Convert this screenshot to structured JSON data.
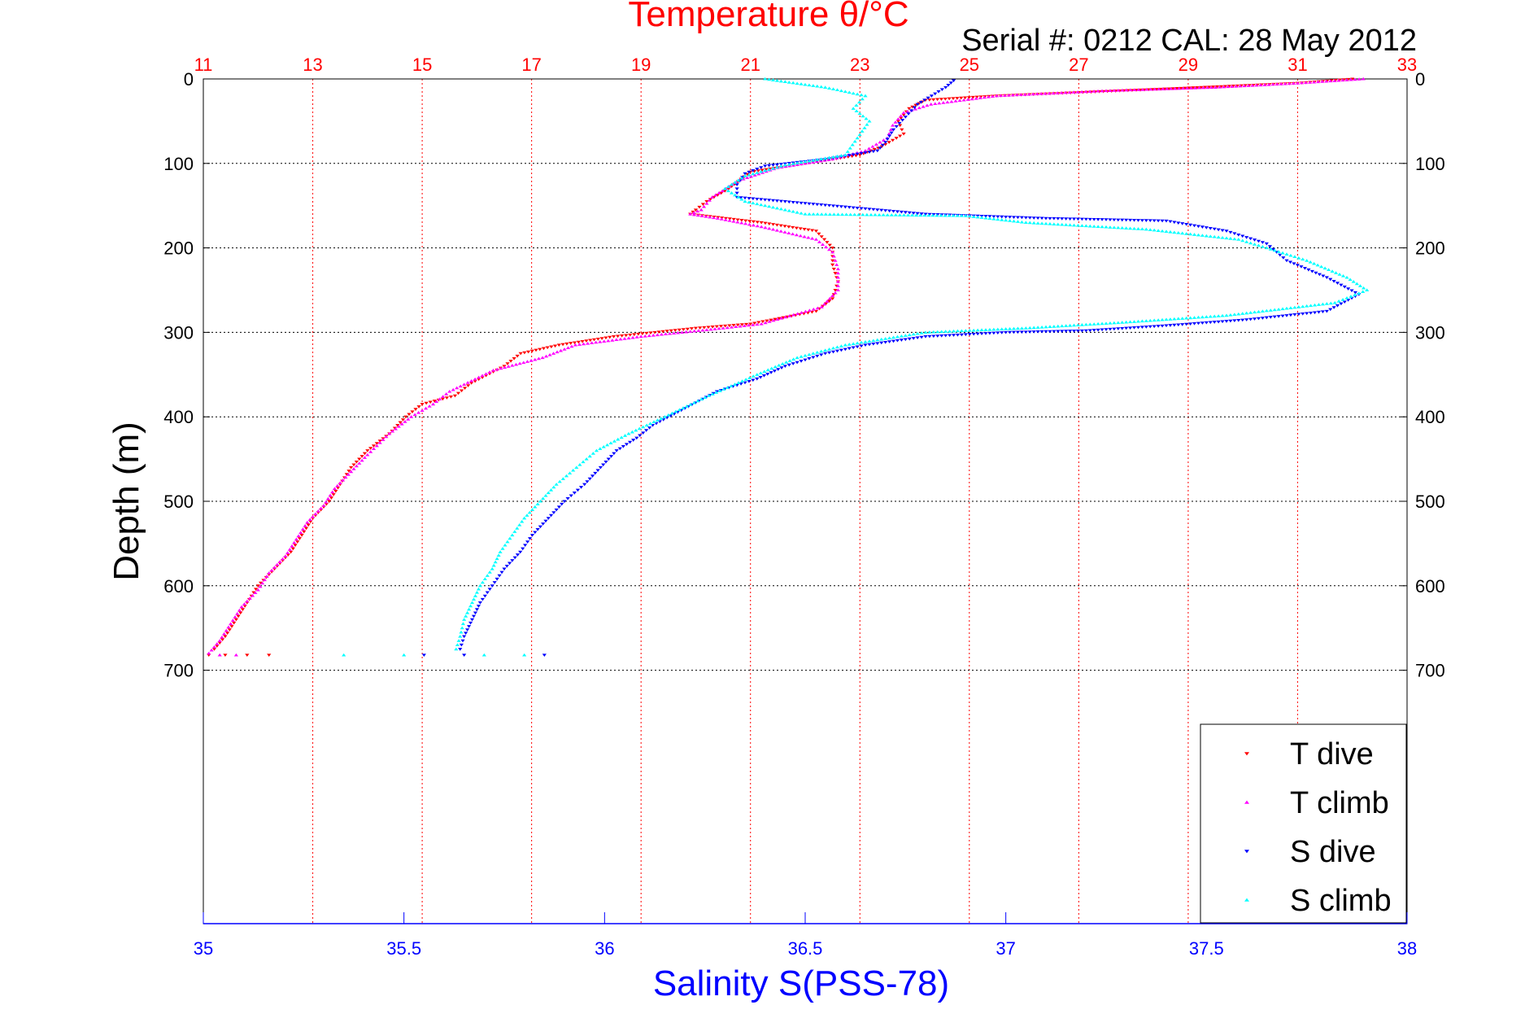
{
  "colors": {
    "temperature": "#ff0000",
    "salinity": "#0000ff",
    "t_dive": "#ff0000",
    "t_climb": "#ff00ff",
    "s_dive": "#0000ff",
    "s_climb": "#00ffff"
  },
  "chart_data": {
    "type": "scatter",
    "title": "Temperature θ/°C",
    "subtitle": "Serial #: 0212  CAL: 28 May 2012",
    "xlabel": "Salinity S(PSS-78)",
    "ylabel": "Depth (m)",
    "temperature_axis": {
      "range": [
        11,
        33
      ],
      "ticks": [
        "11",
        "13",
        "15",
        "17",
        "19",
        "21",
        "23",
        "25",
        "27",
        "29",
        "31",
        "33"
      ],
      "grid": true
    },
    "salinity_axis": {
      "range": [
        35,
        38
      ],
      "ticks": [
        "35",
        "35.5",
        "36",
        "36.5",
        "37",
        "37.5",
        "38"
      ]
    },
    "depth_axis": {
      "range": [
        0,
        1000
      ],
      "reversed": true,
      "ticks": [
        "0",
        "100",
        "200",
        "300",
        "400",
        "500",
        "600",
        "700"
      ],
      "grid": true
    },
    "legend": {
      "position": "bottom-right",
      "entries": [
        "T dive",
        "T climb",
        "S dive",
        "S climb"
      ]
    },
    "series": [
      {
        "name": "T dive",
        "axis": "temperature",
        "marker": "triangle-down",
        "points": [
          [
            32.0,
            0
          ],
          [
            31.0,
            5
          ],
          [
            28.5,
            12
          ],
          [
            25.5,
            20
          ],
          [
            24.2,
            25
          ],
          [
            23.9,
            35
          ],
          [
            23.7,
            50
          ],
          [
            23.8,
            65
          ],
          [
            23.4,
            80
          ],
          [
            23.0,
            90
          ],
          [
            22.0,
            100
          ],
          [
            21.0,
            110
          ],
          [
            20.6,
            130
          ],
          [
            20.2,
            145
          ],
          [
            20.0,
            155
          ],
          [
            19.9,
            160
          ],
          [
            21.2,
            170
          ],
          [
            22.2,
            180
          ],
          [
            22.5,
            200
          ],
          [
            22.5,
            220
          ],
          [
            22.6,
            240
          ],
          [
            22.5,
            260
          ],
          [
            22.2,
            275
          ],
          [
            21.0,
            290
          ],
          [
            20.0,
            295
          ],
          [
            18.5,
            305
          ],
          [
            17.5,
            315
          ],
          [
            16.8,
            325
          ],
          [
            16.5,
            340
          ],
          [
            15.9,
            360
          ],
          [
            15.6,
            375
          ],
          [
            15.0,
            385
          ],
          [
            14.7,
            400
          ],
          [
            14.4,
            420
          ],
          [
            14.0,
            440
          ],
          [
            13.7,
            460
          ],
          [
            13.5,
            480
          ],
          [
            13.3,
            500
          ],
          [
            13.0,
            520
          ],
          [
            12.8,
            540
          ],
          [
            12.6,
            560
          ],
          [
            12.3,
            580
          ],
          [
            12.0,
            600
          ],
          [
            11.8,
            620
          ],
          [
            11.6,
            640
          ],
          [
            11.4,
            660
          ],
          [
            11.2,
            675
          ],
          [
            11.1,
            682
          ],
          [
            11.4,
            682
          ],
          [
            11.8,
            682
          ],
          [
            12.2,
            682
          ]
        ]
      },
      {
        "name": "T climb",
        "axis": "temperature",
        "marker": "triangle-up",
        "points": [
          [
            32.2,
            0
          ],
          [
            31.0,
            5
          ],
          [
            29.5,
            10
          ],
          [
            27.5,
            14
          ],
          [
            25.5,
            20
          ],
          [
            24.3,
            30
          ],
          [
            23.8,
            40
          ],
          [
            23.6,
            55
          ],
          [
            23.5,
            70
          ],
          [
            23.1,
            85
          ],
          [
            22.5,
            95
          ],
          [
            21.5,
            105
          ],
          [
            20.8,
            120
          ],
          [
            20.3,
            140
          ],
          [
            20.1,
            155
          ],
          [
            19.9,
            160
          ],
          [
            20.4,
            165
          ],
          [
            21.2,
            175
          ],
          [
            22.2,
            190
          ],
          [
            22.5,
            205
          ],
          [
            22.6,
            225
          ],
          [
            22.6,
            250
          ],
          [
            22.3,
            270
          ],
          [
            21.2,
            290
          ],
          [
            20.5,
            295
          ],
          [
            19.0,
            305
          ],
          [
            17.8,
            315
          ],
          [
            17.2,
            330
          ],
          [
            16.3,
            345
          ],
          [
            15.5,
            370
          ],
          [
            15.2,
            385
          ],
          [
            14.8,
            400
          ],
          [
            14.4,
            420
          ],
          [
            14.0,
            445
          ],
          [
            13.7,
            465
          ],
          [
            13.4,
            485
          ],
          [
            13.2,
            505
          ],
          [
            12.9,
            525
          ],
          [
            12.7,
            545
          ],
          [
            12.5,
            565
          ],
          [
            12.2,
            585
          ],
          [
            12.0,
            605
          ],
          [
            11.7,
            625
          ],
          [
            11.5,
            645
          ],
          [
            11.3,
            665
          ],
          [
            11.1,
            680
          ],
          [
            11.3,
            682
          ],
          [
            11.6,
            682
          ]
        ]
      },
      {
        "name": "S dive",
        "axis": "salinity",
        "marker": "triangle-down",
        "points": [
          [
            36.87,
            2
          ],
          [
            36.85,
            10
          ],
          [
            36.78,
            30
          ],
          [
            36.75,
            45
          ],
          [
            36.72,
            60
          ],
          [
            36.7,
            75
          ],
          [
            36.68,
            85
          ],
          [
            36.55,
            95
          ],
          [
            36.4,
            103
          ],
          [
            36.35,
            112
          ],
          [
            36.33,
            125
          ],
          [
            36.33,
            140
          ],
          [
            36.8,
            160
          ],
          [
            37.1,
            165
          ],
          [
            37.4,
            168
          ],
          [
            37.55,
            180
          ],
          [
            37.65,
            195
          ],
          [
            37.7,
            215
          ],
          [
            37.8,
            235
          ],
          [
            37.88,
            255
          ],
          [
            37.8,
            275
          ],
          [
            37.6,
            285
          ],
          [
            37.4,
            292
          ],
          [
            37.2,
            298
          ],
          [
            37.0,
            300
          ],
          [
            36.8,
            305
          ],
          [
            36.65,
            315
          ],
          [
            36.55,
            325
          ],
          [
            36.45,
            340
          ],
          [
            36.38,
            355
          ],
          [
            36.28,
            370
          ],
          [
            36.2,
            390
          ],
          [
            36.12,
            410
          ],
          [
            36.08,
            425
          ],
          [
            36.03,
            440
          ],
          [
            35.99,
            460
          ],
          [
            35.95,
            480
          ],
          [
            35.9,
            500
          ],
          [
            35.86,
            520
          ],
          [
            35.82,
            540
          ],
          [
            35.79,
            560
          ],
          [
            35.75,
            580
          ],
          [
            35.72,
            600
          ],
          [
            35.69,
            620
          ],
          [
            35.67,
            640
          ],
          [
            35.65,
            660
          ],
          [
            35.64,
            675
          ],
          [
            35.65,
            682
          ],
          [
            35.85,
            682
          ],
          [
            35.55,
            682
          ]
        ]
      },
      {
        "name": "S climb",
        "axis": "salinity",
        "marker": "triangle-up",
        "points": [
          [
            36.4,
            0
          ],
          [
            36.55,
            10
          ],
          [
            36.65,
            20
          ],
          [
            36.62,
            35
          ],
          [
            36.66,
            50
          ],
          [
            36.63,
            70
          ],
          [
            36.6,
            90
          ],
          [
            36.45,
            102
          ],
          [
            36.35,
            115
          ],
          [
            36.3,
            130
          ],
          [
            36.35,
            145
          ],
          [
            36.5,
            160
          ],
          [
            36.9,
            162
          ],
          [
            37.05,
            170
          ],
          [
            37.35,
            178
          ],
          [
            37.58,
            190
          ],
          [
            37.65,
            200
          ],
          [
            37.75,
            215
          ],
          [
            37.85,
            235
          ],
          [
            37.9,
            250
          ],
          [
            37.82,
            265
          ],
          [
            37.55,
            280
          ],
          [
            37.3,
            288
          ],
          [
            37.05,
            295
          ],
          [
            36.8,
            300
          ],
          [
            36.6,
            315
          ],
          [
            36.48,
            330
          ],
          [
            36.38,
            350
          ],
          [
            36.26,
            375
          ],
          [
            36.15,
            400
          ],
          [
            36.06,
            420
          ],
          [
            35.98,
            440
          ],
          [
            35.93,
            460
          ],
          [
            35.88,
            480
          ],
          [
            35.84,
            500
          ],
          [
            35.8,
            520
          ],
          [
            35.77,
            540
          ],
          [
            35.74,
            560
          ],
          [
            35.72,
            580
          ],
          [
            35.69,
            600
          ],
          [
            35.67,
            620
          ],
          [
            35.65,
            640
          ],
          [
            35.64,
            660
          ],
          [
            35.63,
            675
          ],
          [
            35.7,
            682
          ],
          [
            35.8,
            682
          ],
          [
            35.35,
            682
          ],
          [
            35.5,
            682
          ]
        ]
      }
    ]
  }
}
